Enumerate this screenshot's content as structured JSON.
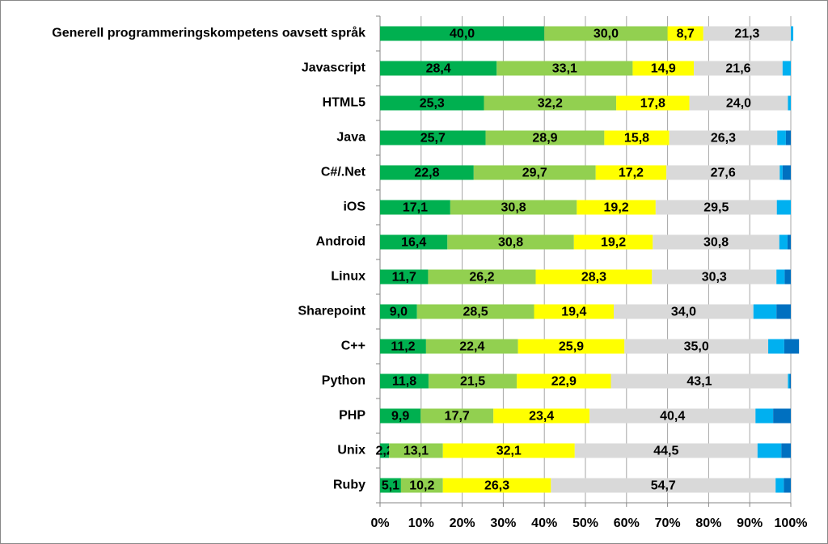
{
  "chart_data": {
    "type": "stacked-barh",
    "categories": [
      "Generell programmeringskompetens oavsett språk",
      "Javascript",
      "HTML5",
      "Java",
      "C#/.Net",
      "iOS",
      "Android",
      "Linux",
      "Sharepoint",
      "C++",
      "Python",
      "PHP",
      "Unix",
      "Ruby"
    ],
    "series": [
      {
        "color": "#00b050",
        "values": [
          40.0,
          28.4,
          25.3,
          25.7,
          22.8,
          17.1,
          16.4,
          11.7,
          9.0,
          11.2,
          11.8,
          9.9,
          2.2,
          5.1
        ],
        "value_labels": [
          "40,0",
          "28,4",
          "25,3",
          "25,7",
          "22,8",
          "17,1",
          "16,4",
          "11,7",
          "9,0",
          "11,2",
          "11,8",
          "9,9",
          "2,2",
          "5,1"
        ]
      },
      {
        "color": "#92d050",
        "values": [
          30.0,
          33.1,
          32.2,
          28.9,
          29.7,
          30.8,
          30.8,
          26.2,
          28.5,
          22.4,
          21.5,
          17.7,
          13.1,
          10.2
        ],
        "value_labels": [
          "30,0",
          "33,1",
          "32,2",
          "28,9",
          "29,7",
          "30,8",
          "30,8",
          "26,2",
          "28,5",
          "22,4",
          "21,5",
          "17,7",
          "13,1",
          "10,2"
        ]
      },
      {
        "color": "#ffff00",
        "values": [
          8.7,
          14.9,
          17.8,
          15.8,
          17.2,
          19.2,
          19.2,
          28.3,
          19.4,
          25.9,
          22.9,
          23.4,
          32.1,
          26.3
        ],
        "value_labels": [
          "8,7",
          "14,9",
          "17,8",
          "15,8",
          "17,2",
          "19,2",
          "19,2",
          "28,3",
          "19,4",
          "25,9",
          "22,9",
          "23,4",
          "32,1",
          "26,3"
        ]
      },
      {
        "color": "#d9d9d9",
        "values": [
          21.3,
          21.6,
          24.0,
          26.3,
          27.6,
          29.5,
          30.8,
          30.3,
          34.0,
          35.0,
          43.1,
          40.4,
          44.5,
          54.7
        ],
        "value_labels": [
          "21,3",
          "21,6",
          "24,0",
          "26,3",
          "27,6",
          "29,5",
          "30,8",
          "30,3",
          "34,0",
          "35,0",
          "43,1",
          "40,4",
          "44,5",
          "54,7"
        ]
      },
      {
        "color": "#00b0f0",
        "values": [
          0.6,
          2.0,
          0.7,
          2.1,
          0.7,
          3.4,
          2.0,
          2.0,
          5.6,
          3.9,
          0.4,
          4.3,
          5.8,
          2.0
        ]
      },
      {
        "color": "#0070c0",
        "values": [
          0,
          0,
          0,
          1.2,
          2.0,
          0,
          0.8,
          1.5,
          3.5,
          3.6,
          0.3,
          4.3,
          2.3,
          1.7
        ]
      }
    ],
    "xlim": [
      0,
      100
    ],
    "xticks": [
      {
        "value": 0,
        "label": "0%"
      },
      {
        "value": 10,
        "label": "10%"
      },
      {
        "value": 20,
        "label": "20%"
      },
      {
        "value": 30,
        "label": "30%"
      },
      {
        "value": 40,
        "label": "40%"
      },
      {
        "value": 50,
        "label": "50%"
      },
      {
        "value": 60,
        "label": "60%"
      },
      {
        "value": 70,
        "label": "70%"
      },
      {
        "value": 80,
        "label": "80%"
      },
      {
        "value": 90,
        "label": "90%"
      },
      {
        "value": 100,
        "label": "100%"
      }
    ],
    "grid": true
  }
}
